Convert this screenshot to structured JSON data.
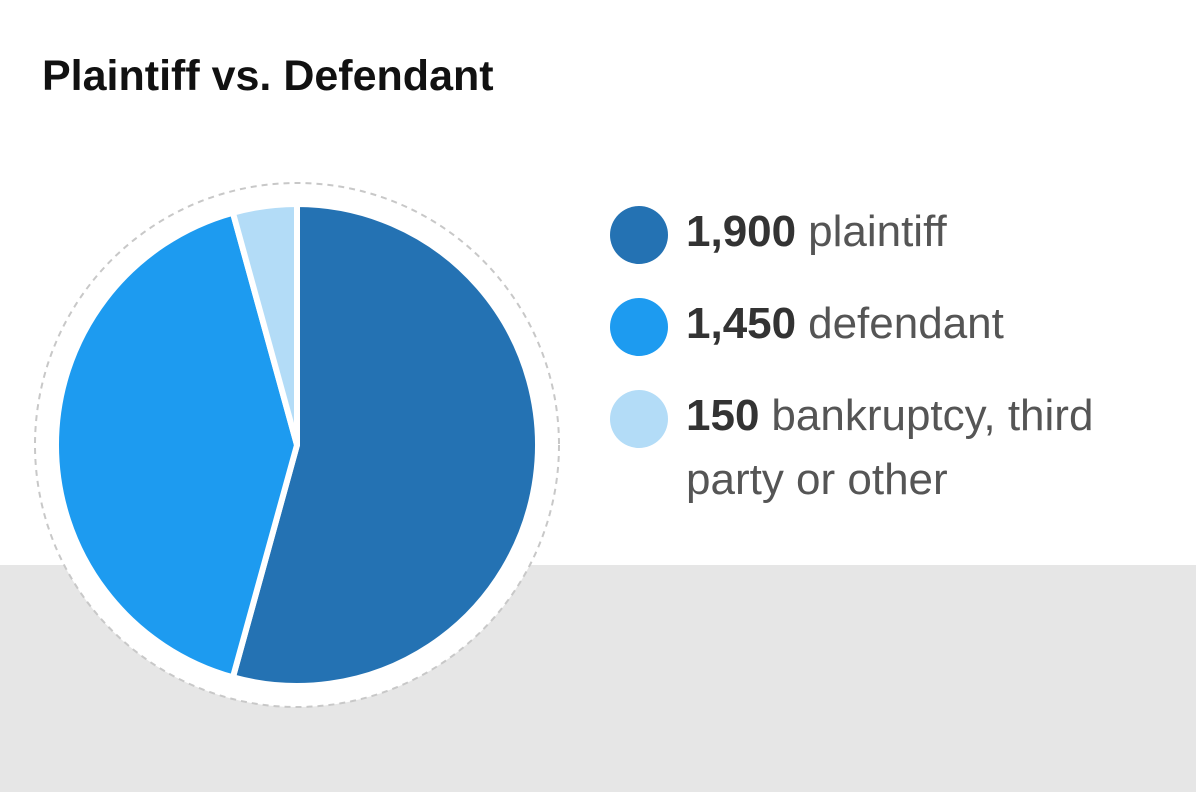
{
  "chart_data": {
    "type": "pie",
    "title": "Plaintiff vs. Defendant",
    "slices": [
      {
        "value": 1900,
        "value_label": "1,900",
        "label": "plaintiff",
        "color": "#2472b3"
      },
      {
        "value": 1450,
        "value_label": "1,450",
        "label": "defendant",
        "color": "#1d9bf0"
      },
      {
        "value": 150,
        "value_label": "150",
        "label": "bankruptcy, third party or other",
        "color": "#b3dcf7"
      }
    ],
    "legend_position": "right"
  }
}
